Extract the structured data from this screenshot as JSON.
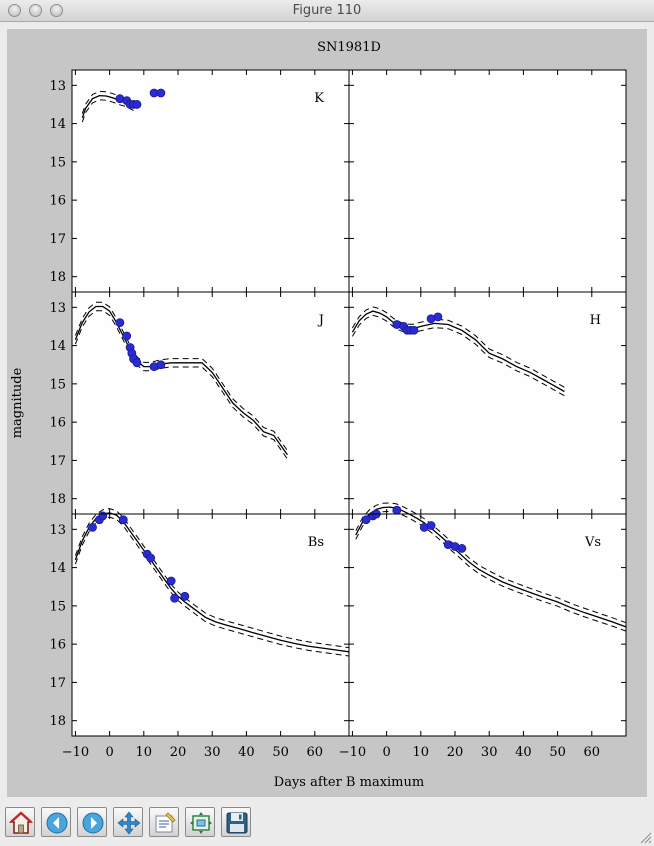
{
  "window": {
    "title": "Figure 110"
  },
  "toolbar": {
    "buttons": [
      {
        "name": "home",
        "icon": "home-icon"
      },
      {
        "name": "back",
        "icon": "back-arrow-icon"
      },
      {
        "name": "forward",
        "icon": "forward-arrow-icon"
      },
      {
        "name": "pan",
        "icon": "move-arrows-icon"
      },
      {
        "name": "subplots",
        "icon": "subplots-config-icon"
      },
      {
        "name": "zoom",
        "icon": "zoom-rect-icon"
      },
      {
        "name": "save",
        "icon": "floppy-disk-icon"
      }
    ]
  },
  "chart_data": {
    "type": "scatter",
    "title": "SN1981D",
    "xlabel": "Days after B maximum",
    "ylabel": "magnitude",
    "xlim": [
      -11,
      70
    ],
    "ylim": [
      18.4,
      12.6
    ],
    "xticks": [
      -10,
      0,
      10,
      20,
      30,
      40,
      50,
      60
    ],
    "xtick_labels": [
      "−10",
      "0",
      "10",
      "20",
      "30",
      "40",
      "50",
      "60"
    ],
    "yticks": [
      13,
      14,
      15,
      16,
      17,
      18
    ],
    "colors": {
      "points": "#2b2bd6",
      "points_edge": "#1a1a8a",
      "lines": "#000000",
      "background": "#fefefe"
    },
    "panels": [
      {
        "band": "K",
        "row": 0,
        "col": 0,
        "points": {
          "x": [
            3,
            5,
            6,
            7,
            8,
            13,
            15
          ],
          "y": [
            13.35,
            13.4,
            13.5,
            13.5,
            13.5,
            13.2,
            13.2
          ]
        },
        "model": {
          "x": [
            -8,
            -7,
            -5,
            -3,
            -1,
            1,
            3,
            5,
            7
          ],
          "y": [
            13.85,
            13.6,
            13.35,
            13.27,
            13.28,
            13.33,
            13.4,
            13.45,
            13.55
          ]
        }
      },
      {
        "band": "",
        "row": 0,
        "col": 1,
        "points": {
          "x": [],
          "y": []
        },
        "model": null
      },
      {
        "band": "J",
        "row": 1,
        "col": 0,
        "points": {
          "x": [
            3,
            5,
            6,
            6.5,
            7,
            8,
            13,
            15
          ],
          "y": [
            13.4,
            13.75,
            14.05,
            14.2,
            14.35,
            14.45,
            14.55,
            14.5
          ]
        },
        "model": {
          "x": [
            -10,
            -8,
            -6,
            -4,
            -2,
            0,
            2,
            4,
            6,
            8,
            10,
            12,
            15,
            18,
            21,
            24,
            27,
            30,
            33,
            36,
            39,
            42,
            45,
            48,
            50,
            52
          ],
          "y": [
            13.85,
            13.4,
            13.12,
            12.98,
            12.98,
            13.1,
            13.4,
            13.75,
            14.1,
            14.4,
            14.55,
            14.55,
            14.48,
            14.45,
            14.45,
            14.45,
            14.45,
            14.7,
            15.1,
            15.5,
            15.75,
            15.95,
            16.25,
            16.35,
            16.6,
            16.85
          ]
        }
      },
      {
        "band": "H",
        "row": 1,
        "col": 1,
        "points": {
          "x": [
            3,
            5,
            6,
            7,
            8,
            13,
            15
          ],
          "y": [
            13.45,
            13.5,
            13.6,
            13.6,
            13.6,
            13.3,
            13.25
          ]
        },
        "model": {
          "x": [
            -10,
            -8,
            -6,
            -4,
            -2,
            0,
            2,
            4,
            6,
            8,
            10,
            14,
            18,
            22,
            26,
            30,
            34,
            38,
            42,
            46,
            50,
            52
          ],
          "y": [
            13.65,
            13.35,
            13.18,
            13.1,
            13.15,
            13.25,
            13.4,
            13.5,
            13.55,
            13.55,
            13.5,
            13.42,
            13.45,
            13.6,
            13.85,
            14.2,
            14.35,
            14.55,
            14.7,
            14.9,
            15.1,
            15.2
          ]
        }
      },
      {
        "band": "Bs",
        "row": 2,
        "col": 0,
        "points": {
          "x": [
            -5,
            -3,
            -2,
            4,
            11,
            12,
            18,
            19,
            22
          ],
          "y": [
            12.95,
            12.75,
            12.65,
            12.75,
            13.65,
            13.75,
            14.35,
            14.8,
            14.75
          ]
        },
        "model": {
          "x": [
            -10,
            -8,
            -6,
            -4,
            -2,
            0,
            2,
            4,
            6,
            8,
            10,
            12,
            14,
            16,
            18,
            20,
            22,
            25,
            28,
            31,
            34,
            38,
            42,
            46,
            50,
            54,
            58,
            62,
            66,
            70
          ],
          "y": [
            13.8,
            13.3,
            12.95,
            12.72,
            12.6,
            12.57,
            12.63,
            12.8,
            13.05,
            13.3,
            13.55,
            13.8,
            14.05,
            14.3,
            14.55,
            14.75,
            14.9,
            15.1,
            15.3,
            15.42,
            15.5,
            15.6,
            15.7,
            15.8,
            15.9,
            15.98,
            16.05,
            16.1,
            16.15,
            16.2
          ]
        }
      },
      {
        "band": "Vs",
        "row": 2,
        "col": 1,
        "points": {
          "x": [
            -6,
            -4,
            -3,
            3,
            11,
            13,
            18,
            20,
            22
          ],
          "y": [
            12.75,
            12.65,
            12.6,
            12.5,
            12.95,
            12.9,
            13.4,
            13.45,
            13.5
          ]
        },
        "model": {
          "x": [
            -9,
            -7,
            -5,
            -3,
            -1,
            1,
            3,
            5,
            7,
            9,
            11,
            13,
            15,
            17,
            19,
            21,
            24,
            27,
            30,
            34,
            38,
            42,
            46,
            50,
            54,
            58,
            62,
            66,
            70
          ],
          "y": [
            13.15,
            12.8,
            12.6,
            12.48,
            12.43,
            12.42,
            12.45,
            12.53,
            12.62,
            12.72,
            12.83,
            12.97,
            13.12,
            13.28,
            13.45,
            13.6,
            13.85,
            14.05,
            14.2,
            14.38,
            14.52,
            14.65,
            14.78,
            14.9,
            15.05,
            15.18,
            15.3,
            15.42,
            15.55
          ]
        }
      }
    ]
  }
}
